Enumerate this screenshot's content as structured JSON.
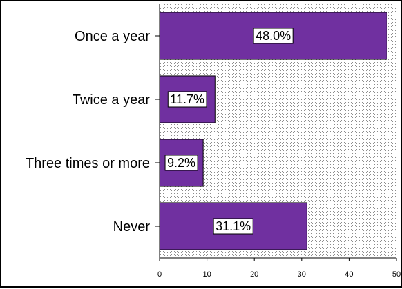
{
  "chart_data": {
    "type": "bar",
    "orientation": "horizontal",
    "categories": [
      "Once a year",
      "Twice a year",
      "Three times or more",
      "Never"
    ],
    "values": [
      48.0,
      11.7,
      9.2,
      31.1
    ],
    "data_labels": [
      "48.0%",
      "11.7%",
      "9.2%",
      "31.1%"
    ],
    "xlim": [
      0,
      50
    ],
    "x_ticks": [
      0,
      10,
      20,
      30,
      40,
      50
    ],
    "title": "",
    "xlabel": "",
    "ylabel": "",
    "grid": false,
    "bar_color": "#7030a0",
    "plot_background": "dotted"
  }
}
